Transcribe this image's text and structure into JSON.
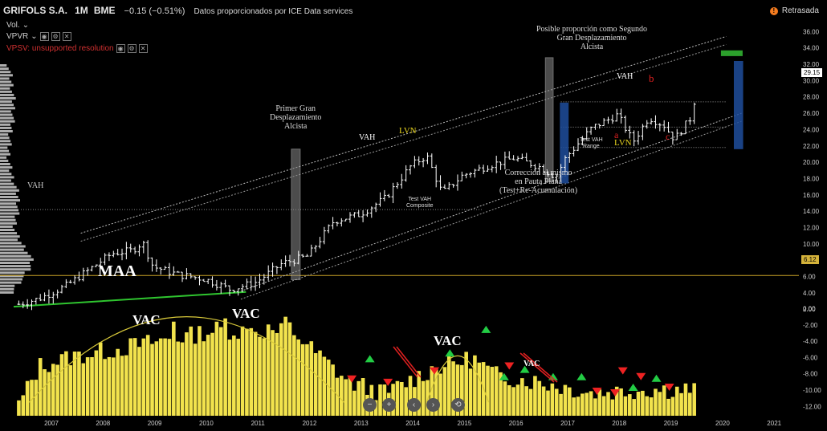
{
  "header": {
    "symbol": "GRIFOLS S.A.",
    "interval": "1M",
    "exchange": "BME",
    "change": "−0.15 (−0.51%)",
    "provider": "Datos proporcionados por ICE Data services"
  },
  "indicators": [
    {
      "label": "Vol."
    },
    {
      "label": "VPVR"
    },
    {
      "label": "VPSV: unsupported resolution"
    }
  ],
  "status": {
    "delayed": "Retrasada"
  },
  "price_labels": {
    "last": "29.15",
    "level": "6.12"
  },
  "colors": {
    "background": "#000000",
    "bars": "#ffffff",
    "volume": "#f2e34d",
    "support": "#2fc52f",
    "level": "#c9a227",
    "up_arrow": "#22cc44",
    "down_arrow": "#ee2222",
    "projection": "#1e4d9c",
    "gray_box": "#8a8a8a"
  },
  "annotations": {
    "maa": "MAA",
    "vah_left": "VAH",
    "vah_mid": "VAH",
    "vah_right": "VAH",
    "lvn_1": "LVN",
    "lvn_2": "LVN",
    "first_move": "Primer Gran\nDesplazamiento\nAlcista",
    "second_move": "Posible proporción como Segundo\nGran Desplazamiento\nAlcista",
    "correction": "Corrección al mismo\nen Pauta Plana\n(Test+Re-Acumulación)",
    "test_vah_composite": "Test VAH\nComposite",
    "test_vah_range": "Test VAH\nRange",
    "wave_a": "a",
    "wave_b": "b",
    "wave_c": "c",
    "vac_1": "VAC",
    "vac_2": "VAC",
    "vac_3": "VAC",
    "vac_4": "VAC"
  },
  "controls": [
    "−",
    "+",
    "‹",
    "›",
    "⟲"
  ],
  "chart_data": {
    "type": "candlestick",
    "x_tick_labels": [
      "2007",
      "2008",
      "2009",
      "2010",
      "2011",
      "2012",
      "2013",
      "2014",
      "2015",
      "2016",
      "2017",
      "2018",
      "2019",
      "2020",
      "2021"
    ],
    "price_axis": {
      "ticks": [
        "36.00",
        "34.00",
        "32.00",
        "30.00",
        "28.00",
        "26.00",
        "24.00",
        "22.00",
        "20.00",
        "18.00",
        "16.00",
        "14.00",
        "12.00",
        "10.00",
        "8.00",
        "6.00",
        "4.00",
        "2.00"
      ],
      "range": [
        1,
        37
      ]
    },
    "volume_axis": {
      "ticks": [
        "0.00",
        "-2.00",
        "-4.00",
        "-6.00",
        "-8.00",
        "-10.00",
        "-12.00"
      ]
    },
    "price_waypoints": [
      [
        "2006.4",
        2.6
      ],
      [
        "2006.8",
        3.3
      ],
      [
        "2007.3",
        4.8
      ],
      [
        "2007.8",
        7.0
      ],
      [
        "2008.2",
        8.8
      ],
      [
        "2008.6",
        9.2
      ],
      [
        "2008.8",
        10.2
      ],
      [
        "2009.0",
        7.2
      ],
      [
        "2009.5",
        6.2
      ],
      [
        "2010.0",
        5.7
      ],
      [
        "2010.5",
        4.4
      ],
      [
        "2011.0",
        5.3
      ],
      [
        "2011.5",
        7.6
      ],
      [
        "2012.0",
        8.5
      ],
      [
        "2012.5",
        12.8
      ],
      [
        "2013.0",
        13.6
      ],
      [
        "2013.5",
        15.6
      ],
      [
        "2014.0",
        19.6
      ],
      [
        "2014.3",
        20.8
      ],
      [
        "2014.6",
        16.2
      ],
      [
        "2015.0",
        18.4
      ],
      [
        "2015.5",
        19.6
      ],
      [
        "2016.0",
        20.5
      ],
      [
        "2016.5",
        19.4
      ],
      [
        "2016.8",
        18.2
      ],
      [
        "2017.0",
        20.6
      ],
      [
        "2017.5",
        24.2
      ],
      [
        "2018.0",
        25.8
      ],
      [
        "2018.3",
        22.5
      ],
      [
        "2018.6",
        25.5
      ],
      [
        "2018.9",
        24.5
      ],
      [
        "2019.1",
        22.8
      ],
      [
        "2019.4",
        25.3
      ],
      [
        "2019.55",
        29.15
      ]
    ],
    "volume_waypoints": [
      [
        "2006.4",
        -12.3
      ],
      [
        "2006.8",
        -7.5
      ],
      [
        "2007.5",
        -6.3
      ],
      [
        "2008.5",
        -5.2
      ],
      [
        "2009.5",
        -4.0
      ],
      [
        "2010.3",
        -3.0
      ],
      [
        "2011.0",
        -3.4
      ],
      [
        "2011.6",
        -2.6
      ],
      [
        "2012.2",
        -6.2
      ],
      [
        "2012.8",
        -9.5
      ],
      [
        "2013.5",
        -10.9
      ],
      [
        "2014.5",
        -7.6
      ],
      [
        "2015.2",
        -6.6
      ],
      [
        "2015.6",
        -8.6
      ],
      [
        "2016.5",
        -9.5
      ],
      [
        "2017.5",
        -10.8
      ],
      [
        "2018.5",
        -10.4
      ],
      [
        "2019.55",
        -10.4
      ]
    ],
    "volume_spikes": [
      [
        "2011.6",
        -1.0
      ],
      [
        "2011.5",
        -1.8
      ],
      [
        "2011.4",
        -3.0
      ],
      [
        "2010.4",
        -1.2
      ],
      [
        "2009.4",
        -1.6
      ],
      [
        "2009.7",
        -2.2
      ],
      [
        "2010.9",
        -2.4
      ]
    ],
    "levels": {
      "vah": 14.2,
      "support_level": 6.12
    },
    "channel": {
      "upper": [
        [
          "2007.6",
          11.3
        ],
        [
          "2020.1",
          35.4
        ]
      ],
      "lower": [
        [
          "2010.7",
          4.2
        ],
        [
          "2020.4",
          26.0
        ]
      ]
    },
    "support_line": [
      [
        "2006.3",
        2.3
      ],
      [
        "2010.8",
        4.1
      ]
    ],
    "range_lines": [
      24.3,
      27.4,
      21.8
    ],
    "gray_boxes": [
      {
        "x": [
          "2011.68",
          "2011.85"
        ],
        "y": [
          5.6,
          21.6
        ]
      },
      {
        "x": [
          "2016.6",
          "2016.75"
        ],
        "y": [
          17.6,
          32.8
        ]
      }
    ],
    "blue_boxes": [
      {
        "x": [
          "2016.88",
          "2017.05"
        ],
        "y": [
          17.4,
          27.3
        ]
      },
      {
        "x": [
          "2020.25",
          "2020.43"
        ],
        "y": [
          21.6,
          32.4
        ]
      }
    ],
    "green_target": {
      "x": [
        "2020.0",
        "2020.42"
      ],
      "y": [
        33.0,
        33.7
      ]
    },
    "vac_arcs": [
      {
        "x": [
          "2006.6",
          "2012.7"
        ],
        "peak": -1.0
      },
      {
        "x": [
          "2014.3",
          "2015.5"
        ],
        "peak": -5.8
      }
    ],
    "markers_up": [
      [
        "2013.2",
        -6.1
      ],
      [
        "2014.75",
        -5.4
      ],
      [
        "2015.45",
        -2.5
      ],
      [
        "2015.8",
        -8.3
      ],
      [
        "2016.2",
        -7.4
      ],
      [
        "2016.75",
        -8.3
      ],
      [
        "2017.3",
        -8.3
      ],
      [
        "2018.3",
        -9.6
      ],
      [
        "2018.75",
        -8.5
      ]
    ],
    "markers_down": [
      [
        "2012.85",
        -8.6
      ],
      [
        "2013.55",
        -9.0
      ],
      [
        "2014.45",
        -7.6
      ],
      [
        "2015.9",
        -7.0
      ],
      [
        "2017.6",
        -10.1
      ],
      [
        "2017.95",
        -10.3
      ],
      [
        "2018.1",
        -7.6
      ],
      [
        "2018.45",
        -8.3
      ],
      [
        "2019.0",
        -9.6
      ]
    ]
  }
}
